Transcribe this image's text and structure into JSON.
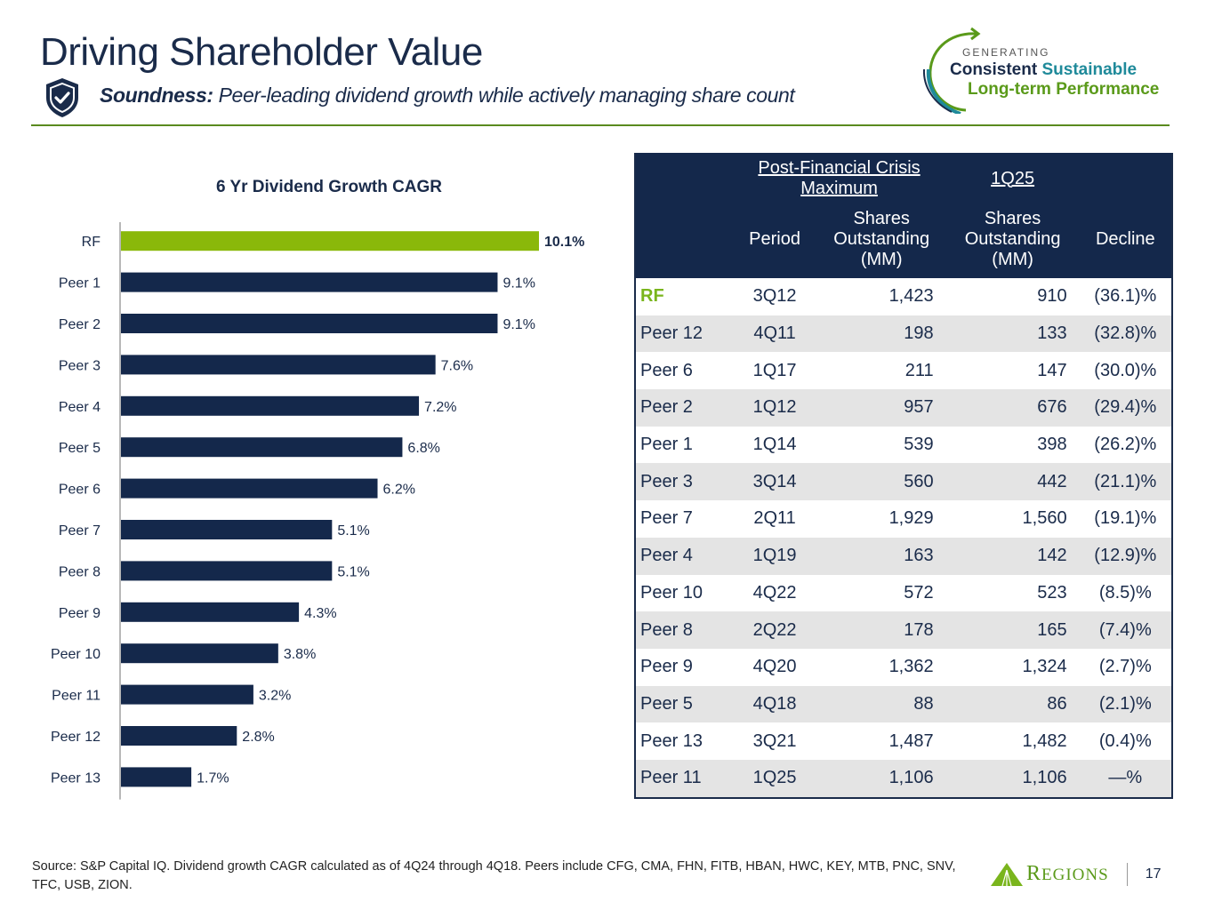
{
  "header": {
    "title": "Driving Shareholder Value",
    "subtitle_bold": "Soundness:",
    "subtitle_rest": " Peer-leading dividend growth while actively managing share count",
    "icon": "shield-check-icon"
  },
  "brand_tagline": {
    "generating": "GENERATING",
    "consistent": "Consistent",
    "sustainable": "Sustainable",
    "long_term": "Long-term Performance"
  },
  "colors": {
    "navy": "#14284b",
    "green": "#8ab80a",
    "accent_green": "#5a8a1f",
    "teal": "#1f8a9a",
    "row_alt": "#e4e4e4"
  },
  "chart_data": {
    "type": "bar",
    "orientation": "horizontal",
    "title": "6 Yr Dividend Growth CAGR",
    "xlabel": "",
    "ylabel": "",
    "categories": [
      "RF",
      "Peer 1",
      "Peer 2",
      "Peer 3",
      "Peer 4",
      "Peer 5",
      "Peer 6",
      "Peer 7",
      "Peer 8",
      "Peer 9",
      "Peer 10",
      "Peer 11",
      "Peer 12",
      "Peer 13"
    ],
    "values": [
      10.1,
      9.1,
      9.1,
      7.6,
      7.2,
      6.8,
      6.2,
      5.1,
      5.1,
      4.3,
      3.8,
      3.2,
      2.8,
      1.7
    ],
    "labels": [
      "10.1%",
      "9.1%",
      "9.1%",
      "7.6%",
      "7.2%",
      "6.8%",
      "6.2%",
      "5.1%",
      "5.1%",
      "4.3%",
      "3.8%",
      "3.2%",
      "2.8%",
      "1.7%"
    ],
    "highlight": "RF",
    "xlim": [
      0,
      10.1
    ],
    "grid": false,
    "legend": "none"
  },
  "table": {
    "group_headers": [
      "Post-Financial Crisis Maximum",
      "1Q25"
    ],
    "columns": [
      "",
      "Period",
      "Shares Outstanding (MM)",
      "Shares Outstanding (MM)",
      "Decline"
    ],
    "rows": [
      {
        "name": "RF",
        "period": "3Q12",
        "max_shares": "1,423",
        "current_shares": "910",
        "decline": "(36.1)%"
      },
      {
        "name": "Peer 12",
        "period": "4Q11",
        "max_shares": "198",
        "current_shares": "133",
        "decline": "(32.8)%"
      },
      {
        "name": "Peer 6",
        "period": "1Q17",
        "max_shares": "211",
        "current_shares": "147",
        "decline": "(30.0)%"
      },
      {
        "name": "Peer 2",
        "period": "1Q12",
        "max_shares": "957",
        "current_shares": "676",
        "decline": "(29.4)%"
      },
      {
        "name": "Peer 1",
        "period": "1Q14",
        "max_shares": "539",
        "current_shares": "398",
        "decline": "(26.2)%"
      },
      {
        "name": "Peer 3",
        "period": "3Q14",
        "max_shares": "560",
        "current_shares": "442",
        "decline": "(21.1)%"
      },
      {
        "name": "Peer 7",
        "period": "2Q11",
        "max_shares": "1,929",
        "current_shares": "1,560",
        "decline": "(19.1)%"
      },
      {
        "name": "Peer 4",
        "period": "1Q19",
        "max_shares": "163",
        "current_shares": "142",
        "decline": "(12.9)%"
      },
      {
        "name": "Peer 10",
        "period": "4Q22",
        "max_shares": "572",
        "current_shares": "523",
        "decline": "(8.5)%"
      },
      {
        "name": "Peer 8",
        "period": "2Q22",
        "max_shares": "178",
        "current_shares": "165",
        "decline": "(7.4)%"
      },
      {
        "name": "Peer 9",
        "period": "4Q20",
        "max_shares": "1,362",
        "current_shares": "1,324",
        "decline": "(2.7)%"
      },
      {
        "name": "Peer 5",
        "period": "4Q18",
        "max_shares": "88",
        "current_shares": "86",
        "decline": "(2.1)%"
      },
      {
        "name": "Peer 13",
        "period": "3Q21",
        "max_shares": "1,487",
        "current_shares": "1,482",
        "decline": "(0.4)%"
      },
      {
        "name": "Peer 11",
        "period": "1Q25",
        "max_shares": "1,106",
        "current_shares": "1,106",
        "decline": "—%"
      }
    ]
  },
  "footer": {
    "source": "Source: S&P Capital IQ.  Dividend growth CAGR calculated as of 4Q24 through 4Q18. Peers include CFG, CMA, FHN, FITB, HBAN, HWC, KEY, MTB, PNC, SNV, TFC, USB, ZION.",
    "brand_R": "R",
    "brand_rest": "EGIONS",
    "page_number": "17"
  }
}
